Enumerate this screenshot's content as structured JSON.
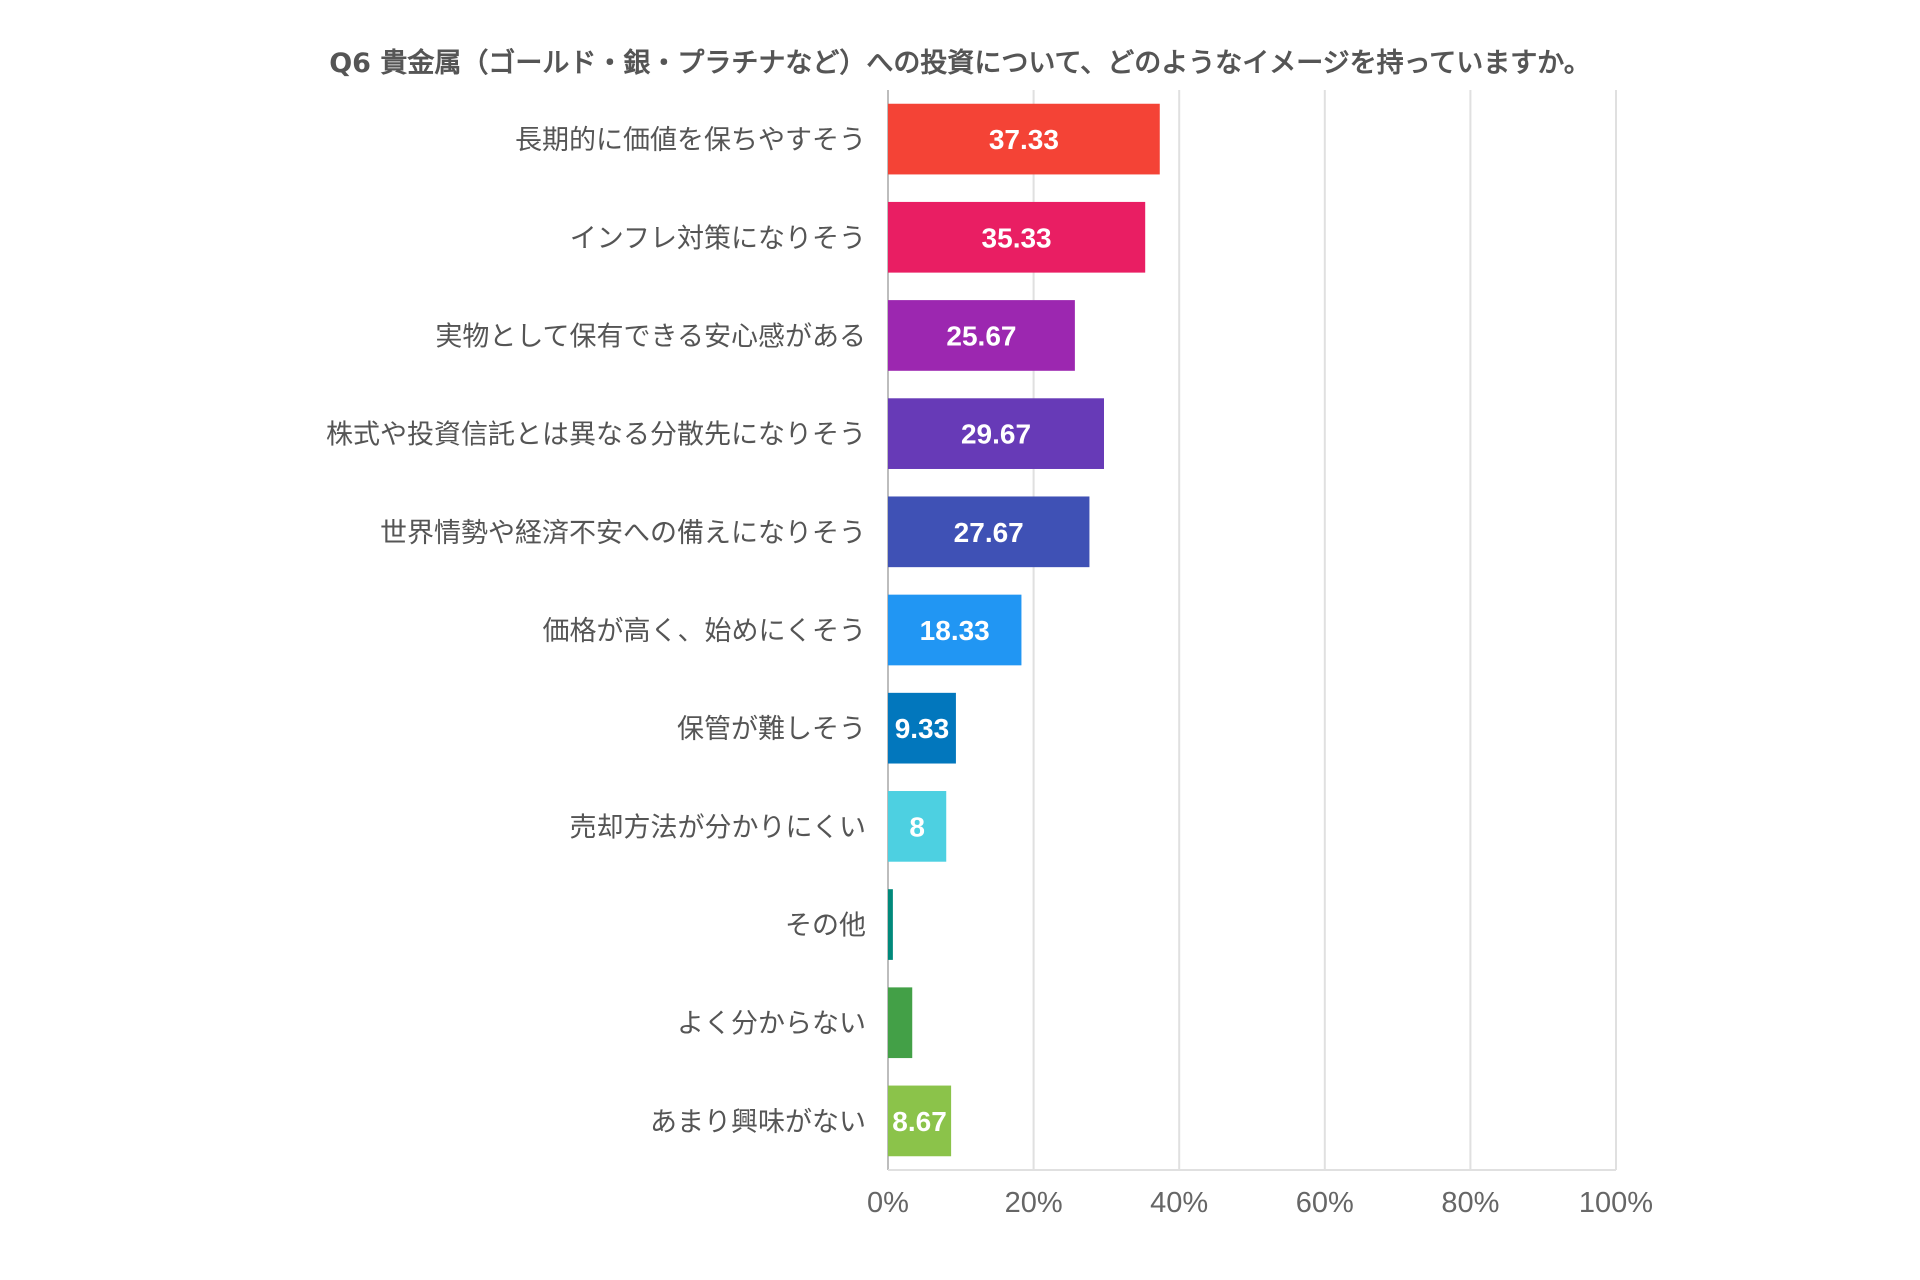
{
  "chart_data": {
    "type": "bar",
    "orientation": "horizontal",
    "title": "Q6 貴金属（ゴールド・銀・プラチナなど）への投資について、どのようなイメージを持っていますか。",
    "categories": [
      "長期的に価値を保ちやすそう",
      "インフレ対策になりそう",
      "実物として保有できる安心感がある",
      "株式や投資信託とは異なる分散先になりそう",
      "世界情勢や経済不安への備えになりそう",
      "価格が高く、始めにくそう",
      "保管が難しそう",
      "売却方法が分かりにくい",
      "その他",
      "よく分からない",
      "あまり興味がない"
    ],
    "values": [
      37.33,
      35.33,
      25.67,
      29.67,
      27.67,
      18.33,
      9.33,
      8,
      0.67,
      3.33,
      8.67
    ],
    "data_labels": [
      "37.33",
      "35.33",
      "25.67",
      "29.67",
      "27.67",
      "18.33",
      "9.33",
      "8",
      "",
      "",
      "8.67"
    ],
    "colors": [
      "#f44336",
      "#e91e63",
      "#9c27b0",
      "#673ab7",
      "#3f51b5",
      "#2196f3",
      "#0277bd",
      "#4dd0e1",
      "#00897b",
      "#43a047",
      "#8bc34a"
    ],
    "xlim": [
      0,
      100
    ],
    "xticks": [
      0,
      20,
      40,
      60,
      80,
      100
    ],
    "xtick_labels": [
      "0%",
      "20%",
      "40%",
      "60%",
      "80%",
      "100%"
    ],
    "grid": true,
    "xlabel": "",
    "ylabel": ""
  }
}
